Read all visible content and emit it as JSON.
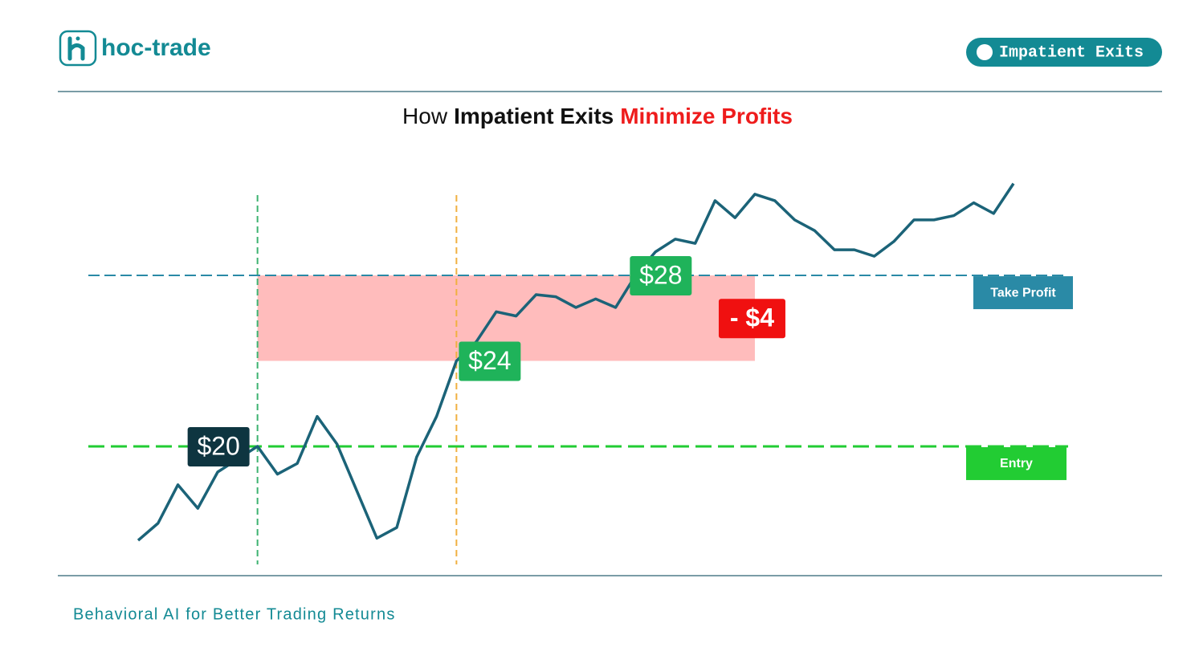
{
  "header": {
    "logo": "hoc-trade",
    "badge": "Impatient Exits"
  },
  "chart_data": {
    "type": "line",
    "title": [
      {
        "text": "How",
        "color": "#111111",
        "bold": false
      },
      {
        "text": "Impatient Exits",
        "color": "#111111",
        "bold": true
      },
      {
        "text": "Minimize Profits",
        "color": "#ee1c1c",
        "bold": true
      }
    ],
    "categories": [
      null,
      null,
      null,
      null,
      null,
      null,
      null,
      null,
      null,
      null,
      null,
      null,
      null,
      null,
      null,
      null,
      null,
      null,
      null,
      null,
      null,
      null,
      null,
      null,
      null,
      null,
      null,
      null,
      null,
      null,
      null,
      null,
      null,
      null,
      null,
      null,
      null,
      null,
      null,
      null,
      null,
      null,
      null,
      null,
      null
    ],
    "series": [
      {
        "color": "#1b6378",
        "values": [
          15.6,
          16.4,
          18.2,
          17.1,
          18.8,
          19.4,
          20,
          18.7,
          19.2,
          21.4,
          20.1,
          17.9,
          15.7,
          16.2,
          19.5,
          21.4,
          24,
          24.9,
          26.3,
          26.1,
          27.1,
          27,
          26.5,
          26.9,
          26.5,
          28,
          29.1,
          29.7,
          29.5,
          31.5,
          30.7,
          31.8,
          31.5,
          30.6,
          30.1,
          29.2,
          29.2,
          28.9,
          29.6,
          30.6,
          30.6,
          30.8,
          31.4,
          30.9,
          32.3
        ]
      }
    ],
    "ylim": [
      15,
      33
    ],
    "levels": [
      {
        "label": "Take Profit",
        "value": 28,
        "color": "#2a8aa6"
      },
      {
        "label": "Entry",
        "value": 20,
        "color": "#22cc33"
      }
    ],
    "verticals": [
      {
        "index": 6,
        "color": "#3cb371"
      },
      {
        "index": 16,
        "color": "#f0b040"
      }
    ],
    "markers": [
      {
        "index": 6,
        "value": 20,
        "label": "$20",
        "color": "#0e3540"
      },
      {
        "index": 16,
        "value": 24,
        "label": "$24",
        "color": "#1fb35a"
      },
      {
        "index": 25,
        "value": 28,
        "label": "$28",
        "color": "#1fb35a"
      }
    ],
    "zone": {
      "from": 24,
      "to": 28,
      "start_index": 6,
      "end_index": 31,
      "color": "#ffbcbc",
      "value": -4,
      "label": "- $4",
      "label_color": "#f01010"
    }
  },
  "footer": {
    "tagline": "Behavioral AI for Better Trading Returns"
  }
}
